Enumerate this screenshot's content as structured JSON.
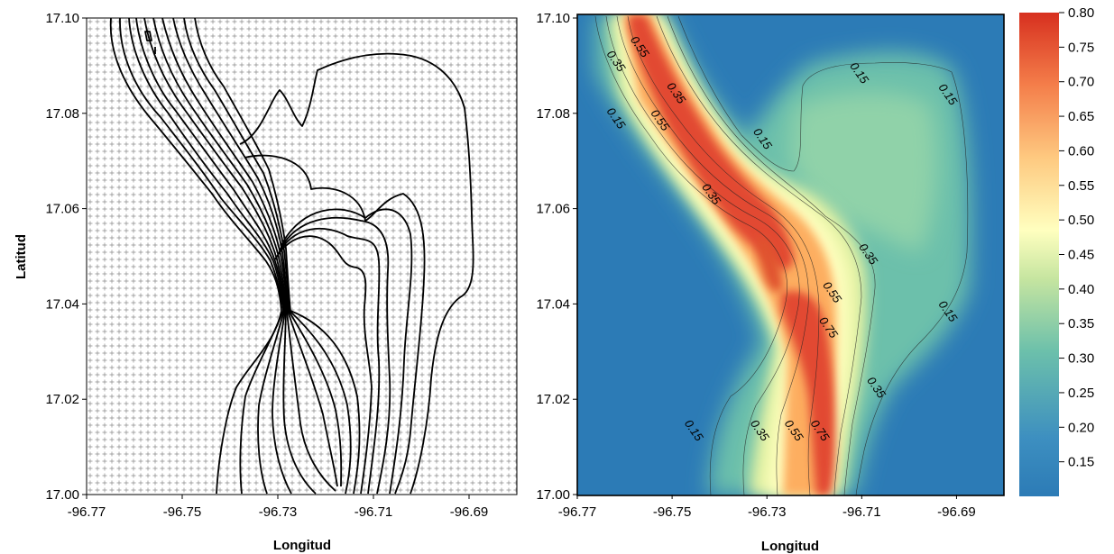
{
  "chart_data": [
    {
      "type": "contour",
      "panel": "left",
      "description_visible": "sample-point grid with black contour lines",
      "xlabel": "Longitud",
      "ylabel": "Latitud",
      "xlim": [
        -96.77,
        -96.68
      ],
      "ylim": [
        17.0,
        17.1
      ],
      "xticks": [
        "-96.77",
        "-96.75",
        "-96.73",
        "-96.71",
        "-96.69"
      ],
      "yticks": [
        "17.00",
        "17.02",
        "17.04",
        "17.06",
        "17.08",
        "17.10"
      ],
      "grid_points": true,
      "line_color": "#000000"
    },
    {
      "type": "heatmap",
      "panel": "right",
      "xlabel": "Longitud",
      "ylabel": "",
      "xlim": [
        -96.77,
        -96.68
      ],
      "ylim": [
        17.0,
        17.1
      ],
      "xticks": [
        "-96.77",
        "-96.75",
        "-96.73",
        "-96.71",
        "-96.69"
      ],
      "yticks": [
        "17.00",
        "17.02",
        "17.04",
        "17.06",
        "17.08",
        "17.10"
      ],
      "contour_levels": [
        0.15,
        0.35,
        0.55,
        0.75
      ],
      "contour_labels": [
        {
          "text": "0.55",
          "x": -96.7575,
          "y": 17.0935
        },
        {
          "text": "0.35",
          "x": -96.7625,
          "y": 17.0905
        },
        {
          "text": "0.35",
          "x": -96.7498,
          "y": 17.0838
        },
        {
          "text": "0.15",
          "x": -96.7625,
          "y": 17.0785
        },
        {
          "text": "0.55",
          "x": -96.7532,
          "y": 17.0781
        },
        {
          "text": "0.15",
          "x": -96.7316,
          "y": 17.0742
        },
        {
          "text": "0.15",
          "x": -96.7112,
          "y": 17.088
        },
        {
          "text": "0.15",
          "x": -96.6925,
          "y": 17.0835
        },
        {
          "text": "0.35",
          "x": -96.7424,
          "y": 17.0626
        },
        {
          "text": "0.35",
          "x": -96.7093,
          "y": 17.05
        },
        {
          "text": "0.55",
          "x": -96.7169,
          "y": 17.042
        },
        {
          "text": "0.75",
          "x": -96.7177,
          "y": 17.0346
        },
        {
          "text": "0.15",
          "x": -96.6925,
          "y": 17.038
        },
        {
          "text": "0.35",
          "x": -96.7076,
          "y": 17.022
        },
        {
          "text": "0.15",
          "x": -96.7461,
          "y": 17.013
        },
        {
          "text": "0.35",
          "x": -96.7322,
          "y": 17.013
        },
        {
          "text": "0.55",
          "x": -96.725,
          "y": 17.013
        },
        {
          "text": "0.75",
          "x": -96.7195,
          "y": 17.013
        }
      ],
      "colorbar": {
        "ticks": [
          "0.80",
          "0.75",
          "0.70",
          "0.65",
          "0.60",
          "0.55",
          "0.50",
          "0.45",
          "0.40",
          "0.35",
          "0.30",
          "0.25",
          "0.20",
          "0.15"
        ],
        "range": [
          0.1,
          0.8
        ],
        "colors": [
          "#2c7bb6",
          "#abdda4",
          "#ffffbf",
          "#fdae61",
          "#d7191c"
        ]
      }
    }
  ]
}
